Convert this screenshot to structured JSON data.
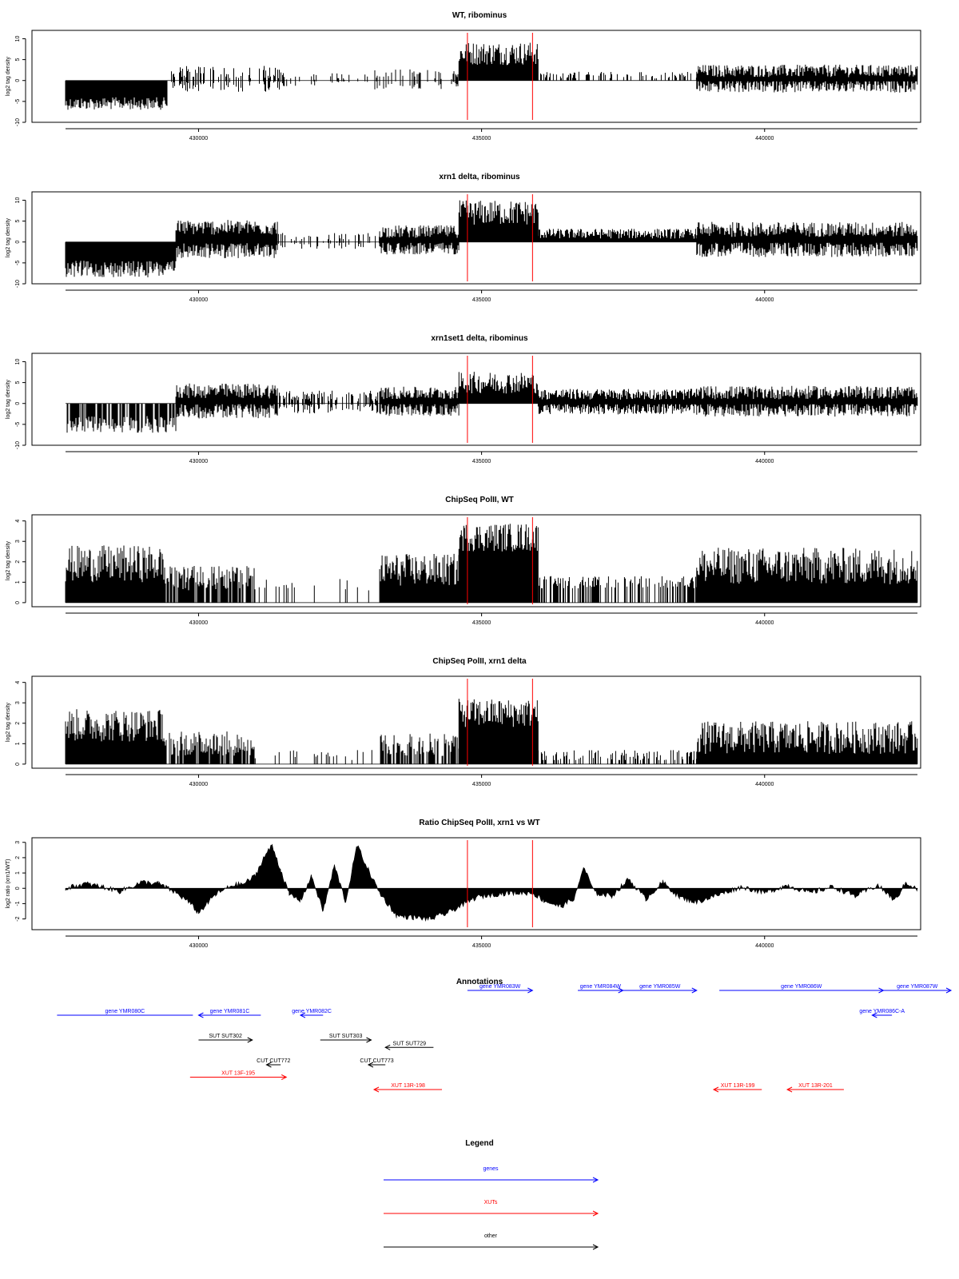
{
  "colors": {
    "axis": "#000000",
    "bars": "#000000",
    "marker": "#ff0000",
    "genes": "#0000ff",
    "xuts": "#ff0000",
    "other": "#000000"
  },
  "chart_data": [
    {
      "type": "bar",
      "title": "WT, ribominus",
      "xlabel": "",
      "ylabel": "log2 tag density",
      "xlim": [
        427650,
        442700
      ],
      "ylim": [
        -10,
        12
      ],
      "yticks": [
        -10,
        -5,
        0,
        5,
        10
      ],
      "xticks": [
        430000,
        435000,
        440000
      ],
      "xtick_labels": [
        "430000",
        "435000",
        "440000"
      ],
      "markers": [
        434750,
        435900
      ],
      "segments": [
        {
          "x": [
            427650,
            429450
          ],
          "side": "neg",
          "level": 5.5,
          "jitter": 1.5
        },
        {
          "x": [
            429450,
            431500
          ],
          "side": "both",
          "level": 2,
          "jitter": 1.5,
          "sparse": 0.45
        },
        {
          "x": [
            431500,
            433100
          ],
          "side": "both",
          "level": 0.8,
          "jitter": 1,
          "sparse": 0.15
        },
        {
          "x": [
            433100,
            434600
          ],
          "side": "both",
          "level": 1.5,
          "jitter": 1.2,
          "sparse": 0.3
        },
        {
          "x": [
            434600,
            436000
          ],
          "side": "pos",
          "level": 6.5,
          "jitter": 2.8
        },
        {
          "x": [
            436000,
            438800
          ],
          "side": "pos",
          "level": 1.3,
          "jitter": 0.8,
          "sparse": 0.35
        },
        {
          "x": [
            438800,
            442700
          ],
          "side": "both",
          "level": 2.3,
          "jitter": 1.5
        }
      ]
    },
    {
      "type": "bar",
      "title": "xrn1 delta, ribominus",
      "xlabel": "",
      "ylabel": "log2 tag density",
      "xlim": [
        427650,
        442700
      ],
      "ylim": [
        -10,
        12
      ],
      "yticks": [
        -10,
        -5,
        0,
        5,
        10
      ],
      "xticks": [
        430000,
        435000,
        440000
      ],
      "xtick_labels": [
        "430000",
        "435000",
        "440000"
      ],
      "markers": [
        434750,
        435900
      ],
      "segments": [
        {
          "x": [
            427650,
            429600
          ],
          "side": "neg",
          "level": 6.5,
          "jitter": 2
        },
        {
          "x": [
            429600,
            431400
          ],
          "side": "both",
          "level": 3.5,
          "jitter": 1.8
        },
        {
          "x": [
            431400,
            433200
          ],
          "side": "both",
          "level": 1.2,
          "jitter": 1,
          "sparse": 0.3
        },
        {
          "x": [
            433200,
            434600
          ],
          "side": "both",
          "level": 2.5,
          "jitter": 1.5
        },
        {
          "x": [
            434600,
            436000
          ],
          "side": "pos",
          "level": 7,
          "jitter": 3
        },
        {
          "x": [
            436000,
            438800
          ],
          "side": "pos",
          "level": 2,
          "jitter": 1.2
        },
        {
          "x": [
            438800,
            442700
          ],
          "side": "both",
          "level": 3,
          "jitter": 1.8
        }
      ]
    },
    {
      "type": "bar",
      "title": "xrn1set1 delta, ribominus",
      "xlabel": "",
      "ylabel": "log2 tag density",
      "xlim": [
        427650,
        442700
      ],
      "ylim": [
        -10,
        12
      ],
      "yticks": [
        -10,
        -5,
        0,
        5,
        10
      ],
      "xticks": [
        430000,
        435000,
        440000
      ],
      "xtick_labels": [
        "430000",
        "435000",
        "440000"
      ],
      "markers": [
        434750,
        435900
      ],
      "segments": [
        {
          "x": [
            427650,
            429600
          ],
          "side": "neg",
          "level": 5,
          "jitter": 2,
          "sparse": 0.8
        },
        {
          "x": [
            429600,
            431400
          ],
          "side": "both",
          "level": 3,
          "jitter": 1.8
        },
        {
          "x": [
            431400,
            433200
          ],
          "side": "both",
          "level": 1.8,
          "jitter": 1.3,
          "sparse": 0.55
        },
        {
          "x": [
            433200,
            434600
          ],
          "side": "both",
          "level": 2.5,
          "jitter": 1.5
        },
        {
          "x": [
            434600,
            436000
          ],
          "side": "pos",
          "level": 5,
          "jitter": 2.6
        },
        {
          "x": [
            436000,
            438800
          ],
          "side": "both",
          "level": 2.2,
          "jitter": 1.3
        },
        {
          "x": [
            438800,
            442700
          ],
          "side": "both",
          "level": 2.6,
          "jitter": 1.6
        }
      ]
    },
    {
      "type": "bar",
      "title": "ChipSeq PolII, WT",
      "xlabel": "",
      "ylabel": "log2 tag density",
      "xlim": [
        427650,
        442700
      ],
      "ylim": [
        -0.2,
        4.3
      ],
      "yticks": [
        0,
        1,
        2,
        3,
        4
      ],
      "xticks": [
        430000,
        435000,
        440000
      ],
      "xtick_labels": [
        "430000",
        "435000",
        "440000"
      ],
      "markers": [
        434750,
        435900
      ],
      "segments": [
        {
          "x": [
            427650,
            429400
          ],
          "side": "pos",
          "level": 1.9,
          "jitter": 0.9
        },
        {
          "x": [
            429400,
            431000
          ],
          "side": "pos",
          "level": 1.2,
          "jitter": 0.6,
          "sparse": 0.7
        },
        {
          "x": [
            431000,
            433200
          ],
          "side": "pos",
          "level": 0.9,
          "jitter": 0.3,
          "sparse": 0.12
        },
        {
          "x": [
            433200,
            434600
          ],
          "side": "pos",
          "level": 1.6,
          "jitter": 0.8
        },
        {
          "x": [
            434600,
            436000
          ],
          "side": "pos",
          "level": 3.2,
          "jitter": 0.7
        },
        {
          "x": [
            436000,
            438800
          ],
          "side": "pos",
          "level": 1.0,
          "jitter": 0.3,
          "sparse": 0.45
        },
        {
          "x": [
            438800,
            442700
          ],
          "side": "pos",
          "level": 1.8,
          "jitter": 0.9
        }
      ]
    },
    {
      "type": "bar",
      "title": "ChipSeq PolII, xrn1 delta",
      "xlabel": "",
      "ylabel": "log2 tag density",
      "xlim": [
        427650,
        442700
      ],
      "ylim": [
        -0.2,
        4.3
      ],
      "yticks": [
        0,
        1,
        2,
        3,
        4
      ],
      "xticks": [
        430000,
        435000,
        440000
      ],
      "xtick_labels": [
        "430000",
        "435000",
        "440000"
      ],
      "markers": [
        434750,
        435900
      ],
      "segments": [
        {
          "x": [
            427650,
            429400
          ],
          "side": "pos",
          "level": 1.9,
          "jitter": 0.8
        },
        {
          "x": [
            429400,
            431000
          ],
          "side": "pos",
          "level": 1.0,
          "jitter": 0.6,
          "sparse": 0.75
        },
        {
          "x": [
            431000,
            433200
          ],
          "side": "pos",
          "level": 0.4,
          "jitter": 0.3,
          "sparse": 0.12
        },
        {
          "x": [
            433200,
            434600
          ],
          "side": "pos",
          "level": 1.0,
          "jitter": 0.6,
          "sparse": 0.6
        },
        {
          "x": [
            434600,
            436000
          ],
          "side": "pos",
          "level": 2.5,
          "jitter": 0.7
        },
        {
          "x": [
            436000,
            438800
          ],
          "side": "pos",
          "level": 0.4,
          "jitter": 0.3,
          "sparse": 0.45
        },
        {
          "x": [
            438800,
            442700
          ],
          "side": "pos",
          "level": 1.3,
          "jitter": 0.8
        }
      ]
    },
    {
      "type": "area",
      "title": "Ratio ChipSeq PolII, xrn1 vs WT",
      "xlabel": "",
      "ylabel": "log2 ratio (xrn1/WT)",
      "xlim": [
        427650,
        442700
      ],
      "ylim": [
        -2.7,
        3.3
      ],
      "yticks": [
        -2,
        -1,
        0,
        1,
        2,
        3
      ],
      "xticks": [
        430000,
        435000,
        440000
      ],
      "xtick_labels": [
        "430000",
        "435000",
        "440000"
      ],
      "markers": [
        434750,
        435900
      ],
      "x": [
        427650,
        428000,
        428300,
        428600,
        429000,
        429300,
        429600,
        429800,
        430000,
        430300,
        430600,
        430800,
        431000,
        431150,
        431300,
        431450,
        431600,
        431800,
        432000,
        432200,
        432400,
        432600,
        432800,
        433000,
        433200,
        433500,
        433800,
        434100,
        434400,
        434700,
        434900,
        435200,
        435500,
        435900,
        436100,
        436400,
        436650,
        436800,
        437000,
        437300,
        437600,
        437900,
        438200,
        438500,
        438800,
        439200,
        439600,
        440000,
        440400,
        440800,
        441200,
        441600,
        442000,
        442300,
        442500,
        442700
      ],
      "y": [
        0.0,
        0.3,
        0.1,
        -0.2,
        0.4,
        0.3,
        -0.3,
        -0.8,
        -1.6,
        -0.4,
        0.2,
        0.3,
        0.8,
        2.0,
        2.8,
        1.2,
        -0.4,
        -0.8,
        0.8,
        -1.5,
        1.5,
        -0.9,
        2.8,
        1.2,
        -0.3,
        -1.8,
        -1.9,
        -2.0,
        -1.6,
        -1.0,
        -0.6,
        -0.4,
        -0.3,
        -0.3,
        -0.8,
        -1.2,
        -0.6,
        1.4,
        -0.3,
        -0.5,
        0.6,
        -0.7,
        0.4,
        -0.6,
        -0.9,
        -0.4,
        0.1,
        -0.3,
        0.2,
        -0.3,
        0.1,
        -0.5,
        0.2,
        -0.8,
        0.4,
        -0.1
      ]
    }
  ],
  "annotations": {
    "title": "Annotations",
    "items": [
      {
        "label": "gene YMR080C",
        "type": "genes",
        "x0": 427500,
        "x1": 429900,
        "row": 0,
        "dir": "none"
      },
      {
        "label": "gene YMR081C",
        "type": "genes",
        "x0": 430000,
        "x1": 431100,
        "row": 0,
        "dir": "left"
      },
      {
        "label": "gene YMR082C",
        "type": "genes",
        "x0": 431800,
        "x1": 432200,
        "row": 0,
        "dir": "left"
      },
      {
        "label": "gene YMR083W",
        "type": "genes",
        "x0": 434750,
        "x1": 435900,
        "row": -1,
        "dir": "right"
      },
      {
        "label": "gene YMR084W",
        "type": "genes",
        "x0": 436700,
        "x1": 437500,
        "row": -1,
        "dir": "right"
      },
      {
        "label": "gene YMR085W",
        "type": "genes",
        "x0": 437500,
        "x1": 438800,
        "row": -1,
        "dir": "right"
      },
      {
        "label": "gene YMR086W",
        "type": "genes",
        "x0": 439200,
        "x1": 442100,
        "row": -1,
        "dir": "right"
      },
      {
        "label": "gene YMR086C-A",
        "type": "genes",
        "x0": 441900,
        "x1": 442250,
        "row": 0,
        "dir": "left"
      },
      {
        "label": "gene YMR087W",
        "type": "genes",
        "x0": 442100,
        "x1": 443300,
        "row": -1,
        "dir": "right"
      },
      {
        "label": "SUT SUT302",
        "type": "other",
        "x0": 430000,
        "x1": 430950,
        "row": 1,
        "dir": "right"
      },
      {
        "label": "SUT SUT303",
        "type": "other",
        "x0": 432150,
        "x1": 433050,
        "row": 1,
        "dir": "right"
      },
      {
        "label": "SUT SUT729",
        "type": "other",
        "x0": 433300,
        "x1": 434150,
        "row": 1.3,
        "dir": "left"
      },
      {
        "label": "CUT CUT772",
        "type": "other",
        "x0": 431200,
        "x1": 431450,
        "row": 2,
        "dir": "left"
      },
      {
        "label": "CUT CUT773",
        "type": "other",
        "x0": 433000,
        "x1": 433300,
        "row": 2,
        "dir": "left"
      },
      {
        "label": "XUT 13F-195",
        "type": "xuts",
        "x0": 429850,
        "x1": 431550,
        "row": 2.5,
        "dir": "right"
      },
      {
        "label": "XUT 13R-198",
        "type": "xuts",
        "x0": 433100,
        "x1": 434300,
        "row": 3,
        "dir": "left"
      },
      {
        "label": "XUT 13R-199",
        "type": "xuts",
        "x0": 439100,
        "x1": 439950,
        "row": 3,
        "dir": "left"
      },
      {
        "label": "XUT 13R-201",
        "type": "xuts",
        "x0": 440400,
        "x1": 441400,
        "row": 3,
        "dir": "left"
      }
    ]
  },
  "legend": {
    "title": "Legend",
    "entries": [
      {
        "label": "genes",
        "type": "genes"
      },
      {
        "label": "XUTs",
        "type": "xuts"
      },
      {
        "label": "other",
        "type": "other"
      }
    ]
  }
}
